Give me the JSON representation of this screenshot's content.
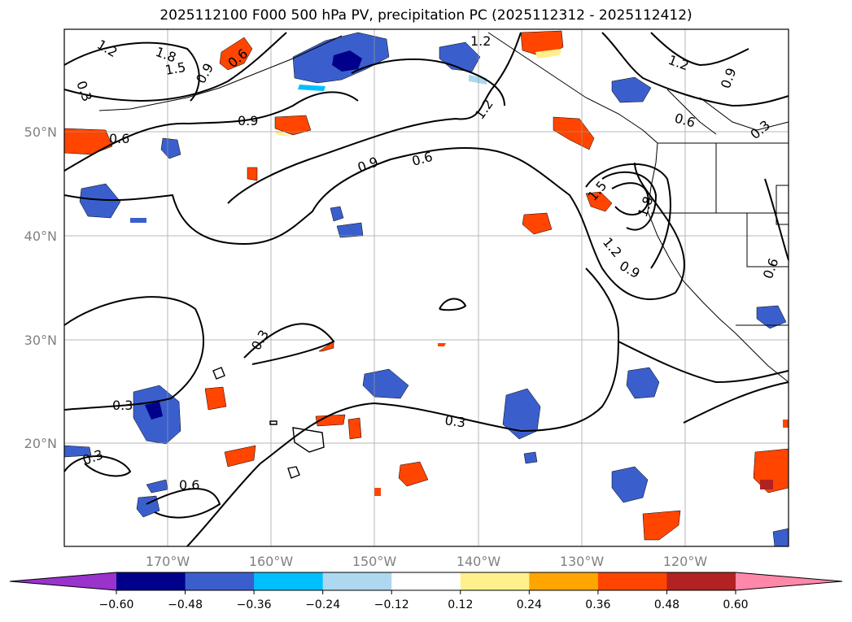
{
  "title": "2025112100 F000 500 hPa PV, precipitation PC (2025112312 - 2025112412)",
  "map": {
    "lon_labels": [
      "170°W",
      "160°W",
      "150°W",
      "140°W",
      "130°W",
      "120°W"
    ],
    "lat_labels": [
      "50°N",
      "40°N",
      "30°N",
      "20°N"
    ],
    "contour_labels": [
      "1.2",
      "1.8",
      "1.5",
      "0.9",
      "0.6",
      "0.3",
      "0.6",
      "0.9",
      "0.9",
      "0.6",
      "1.2",
      "1.2",
      "1.2",
      "0.9",
      "0.6",
      "0.3",
      "1.5",
      "1.8",
      "1.2",
      "0.9",
      "0.3",
      "0.3",
      "0.3",
      "0.6",
      "0.3",
      "0.6"
    ]
  },
  "colorbar": {
    "ticks": [
      "−0.60",
      "−0.48",
      "−0.36",
      "−0.24",
      "−0.12",
      "0.12",
      "0.24",
      "0.36",
      "0.48",
      "0.60"
    ],
    "colors": [
      "#9933cc",
      "#00008b",
      "#3a5fcd",
      "#00bfff",
      "#add8f0",
      "#ffffff",
      "#fff08c",
      "#ffa500",
      "#ff4500",
      "#b22222",
      "#ff88aa"
    ]
  }
}
